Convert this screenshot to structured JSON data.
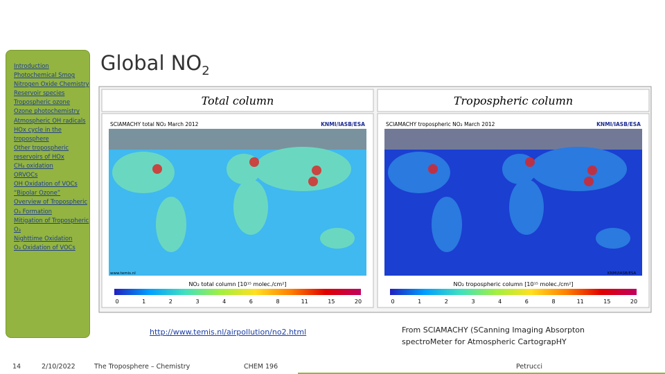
{
  "sidebar": {
    "links": [
      "Introduction",
      "Photochemical Smog",
      "Nitrogen Oxide Chemistry",
      "Reservoir species",
      "Tropospheric ozone",
      "Ozone photochemistry",
      "Atmospheric OH radicals",
      "HOx cycle in the troposphere",
      "Other tropospheric reservoirs of HOx",
      "CH₄ oxidation",
      "ORVOCs",
      "OH Oxidation of VOCs",
      "“Bipolar Ozone”",
      "Overview of Tropospheric O₃ Formation",
      "Mitigation of Tropospheric O₃",
      "Nighttime Oxidation",
      "O₃ Oxidation of VOCs"
    ]
  },
  "title": {
    "text": "Global NO",
    "subscript": "2"
  },
  "figure": {
    "panels": [
      {
        "heading": "Total column",
        "caption": "SCIAMACHY total NO₂   March 2012",
        "credit": "KNMI/IASB/ESA",
        "source": "www.temis.nl",
        "scale_label": "NO₂ total column [10¹⁵ molec./cm²]",
        "scale_ticks": [
          "0",
          "1",
          "2",
          "3",
          "4",
          "6",
          "8",
          "11",
          "15",
          "20"
        ]
      },
      {
        "heading": "Tropospheric column",
        "caption": "SCIAMACHY tropospheric NO₂   March 2012",
        "credit": "KNMI/IASB/ESA",
        "source": "KNMI/IASB/ESA",
        "scale_label": "NO₂ tropospheric column [10¹⁵ molec./cm²]",
        "scale_ticks": [
          "0",
          "1",
          "2",
          "3",
          "4",
          "6",
          "8",
          "11",
          "15",
          "20"
        ]
      }
    ]
  },
  "link": "http://www.temis.nl/airpollution/no2.html",
  "note": "From SCIAMACHY (SCanning Imaging Absorpton spectroMeter for Atmospheric CartograpHY",
  "footer": {
    "page": "14",
    "date": "2/10/2022",
    "course_title": "The Troposphere – Chemistry",
    "course": "CHEM 196",
    "author": "Petrucci"
  }
}
